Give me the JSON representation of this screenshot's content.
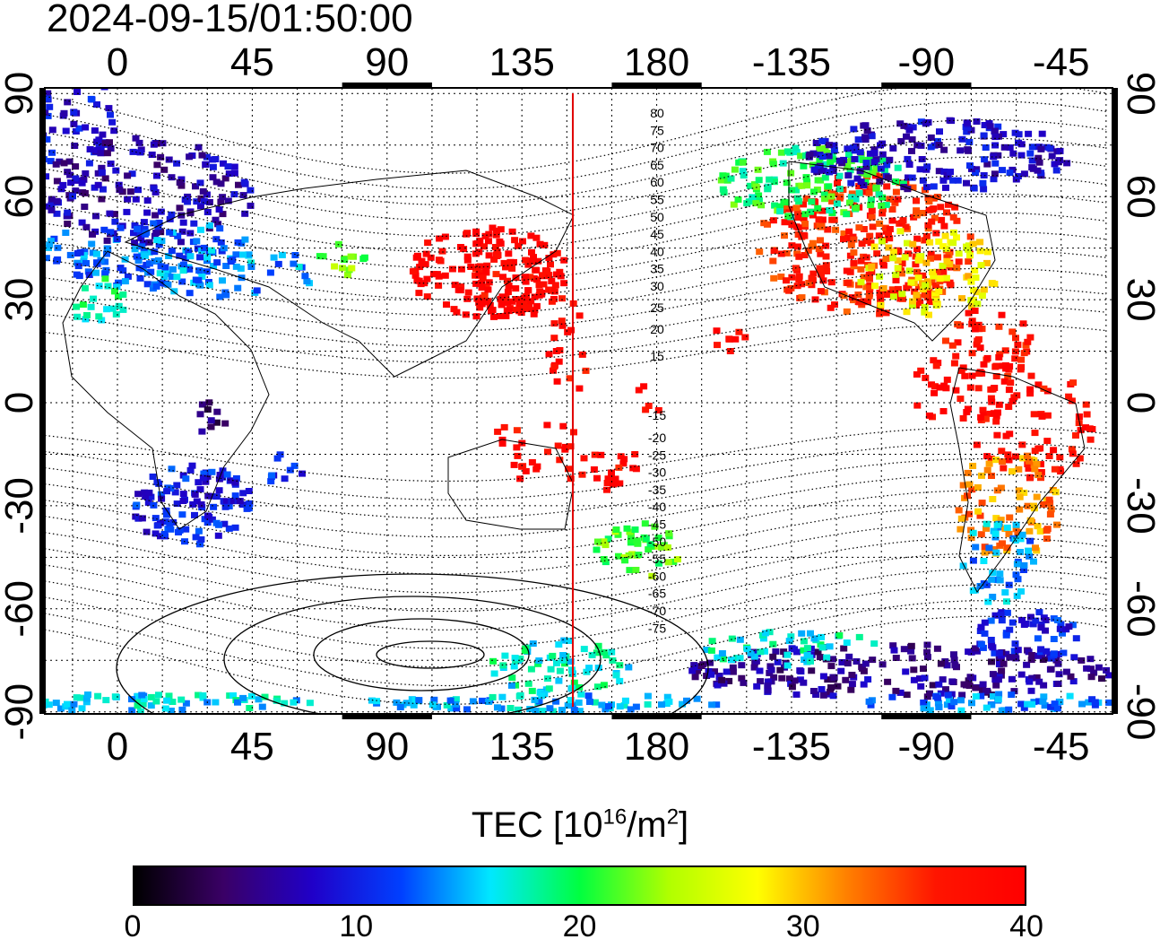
{
  "timestamp": "2024-09-15/01:50:00",
  "map": {
    "top_lon_labels": [
      "0",
      "45",
      "90",
      "135",
      "180",
      "-135",
      "-90",
      "-45"
    ],
    "bottom_lon_labels": [
      "0",
      "45",
      "90",
      "135",
      "180",
      "-135",
      "-90",
      "-45"
    ],
    "left_lat_labels": [
      "90",
      "60",
      "30",
      "0",
      "-30",
      "-60",
      "-90"
    ],
    "right_lat_labels": [
      "90",
      "60",
      "30",
      "0",
      "-30",
      "-60",
      "-90"
    ],
    "lon_values": [
      0,
      45,
      90,
      135,
      180,
      225,
      270,
      315
    ],
    "lat_values": [
      90,
      60,
      30,
      0,
      -30,
      -60,
      -90
    ],
    "magnetic_latitude_labels": [
      "80",
      "75",
      "70",
      "65",
      "60",
      "55",
      "50",
      "45",
      "40",
      "35",
      "30",
      "25",
      "20",
      "15",
      "-15",
      "-20",
      "-25",
      "-30",
      "-35",
      "-40",
      "-45",
      "-50",
      "-55",
      "-60",
      "-65",
      "-70",
      "-75"
    ],
    "terminator_longitude": 152,
    "background_color": "#ffffff",
    "terminator_color": "#e00000"
  },
  "colorbar": {
    "title_main": "TEC  [10",
    "title_exp1": "16",
    "title_mid": "/m",
    "title_exp2": "2",
    "title_end": "]",
    "tick_labels": [
      "0",
      "10",
      "20",
      "30",
      "40"
    ],
    "min": 0,
    "max": 40,
    "colors": [
      "#000000",
      "#3a0066",
      "#2000c8",
      "#0040ff",
      "#00e8ff",
      "#00ff40",
      "#b0ff00",
      "#ffff00",
      "#ff8000",
      "#ff1500",
      "#ff0000"
    ]
  }
}
